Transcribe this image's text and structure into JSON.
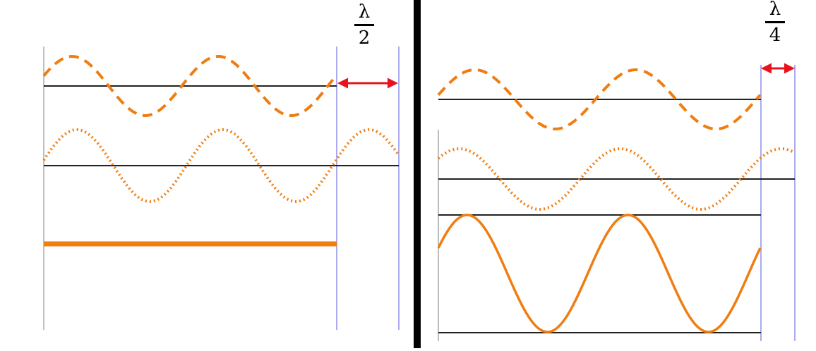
{
  "left_panel": {
    "label": {
      "numerator": "λ",
      "denominator": "2"
    },
    "waves": [
      {
        "name": "incident-wave",
        "style": "dashed",
        "cycles_shown": 2
      },
      {
        "name": "shifted-wave",
        "style": "dotted",
        "cycles_shown": 2.5
      },
      {
        "name": "resultant-wave",
        "style": "solid",
        "amplitude": 0
      }
    ]
  },
  "right_panel": {
    "label": {
      "numerator": "λ",
      "denominator": "4"
    },
    "waves": [
      {
        "name": "incident-wave",
        "style": "dashed",
        "cycles_shown": 2
      },
      {
        "name": "shifted-wave",
        "style": "dotted",
        "cycles_shown": 2.25
      },
      {
        "name": "resultant-wave",
        "style": "solid",
        "amplitude": "larger"
      }
    ]
  },
  "colors": {
    "wave": "#f07d10",
    "baseline": "#222222",
    "boundary": "#aaaaee",
    "arrow": "#e8141c",
    "divider": "#000000"
  }
}
